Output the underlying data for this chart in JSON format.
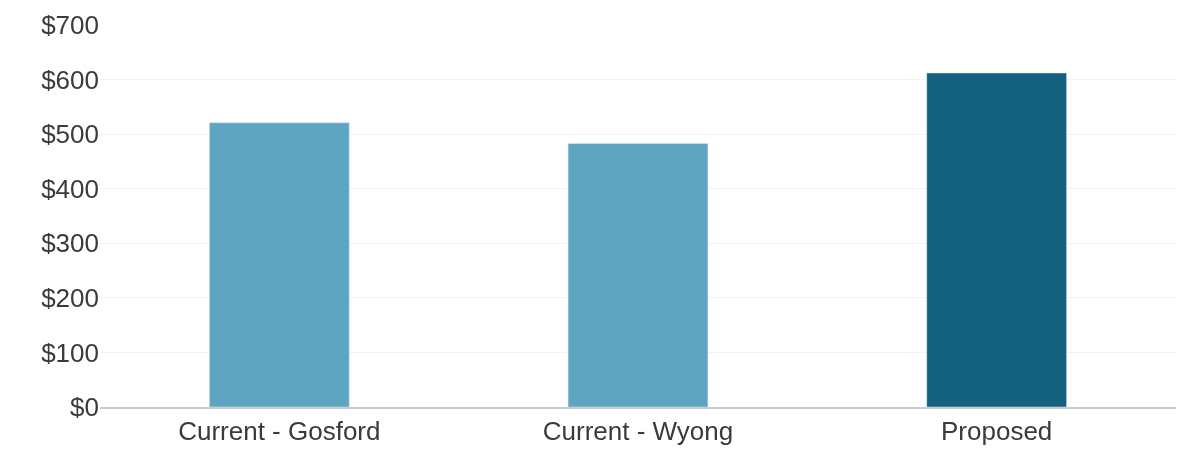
{
  "chart_data": {
    "type": "bar",
    "categories": [
      "Current - Gosford",
      "Current - Wyong",
      "Proposed"
    ],
    "values": [
      521,
      483,
      612
    ],
    "colors": [
      "#5ea5c2",
      "#5ea5c2",
      "#13607f"
    ],
    "ylim": [
      0,
      700
    ],
    "yticks": [
      {
        "value": 0,
        "label": "$0"
      },
      {
        "value": 100,
        "label": "$100"
      },
      {
        "value": 200,
        "label": "$200"
      },
      {
        "value": 300,
        "label": "$300"
      },
      {
        "value": 400,
        "label": "$400"
      },
      {
        "value": 500,
        "label": "$500"
      },
      {
        "value": 600,
        "label": "$600"
      },
      {
        "value": 700,
        "label": "$700"
      }
    ],
    "grid": "y"
  }
}
